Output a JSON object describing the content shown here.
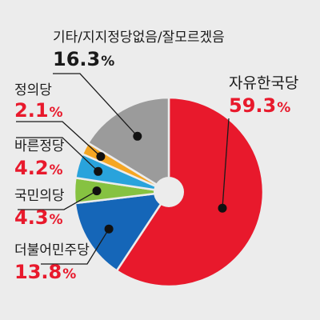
{
  "chart_data": {
    "type": "pie",
    "title": "",
    "start_at_top": true,
    "clockwise": true,
    "donut_hole": true,
    "categories": [
      "자유한국당",
      "더불어민주당",
      "국민의당",
      "바른정당",
      "정의당",
      "기타/지지정당없음/잘모르겠음"
    ],
    "values": [
      59.3,
      13.8,
      4.3,
      4.2,
      2.1,
      16.3
    ],
    "value_labels": [
      "59.3",
      "13.8",
      "4.3",
      "4.2",
      "2.1",
      "16.3"
    ],
    "unit": "%",
    "colors": [
      "#e8192c",
      "#1566b8",
      "#86c241",
      "#29a3dc",
      "#f5a623",
      "#9b9b9b"
    ],
    "label_colors": [
      "#e8192c",
      "#e8192c",
      "#e8192c",
      "#e8192c",
      "#e8192c",
      "#1a1a1a"
    ]
  }
}
